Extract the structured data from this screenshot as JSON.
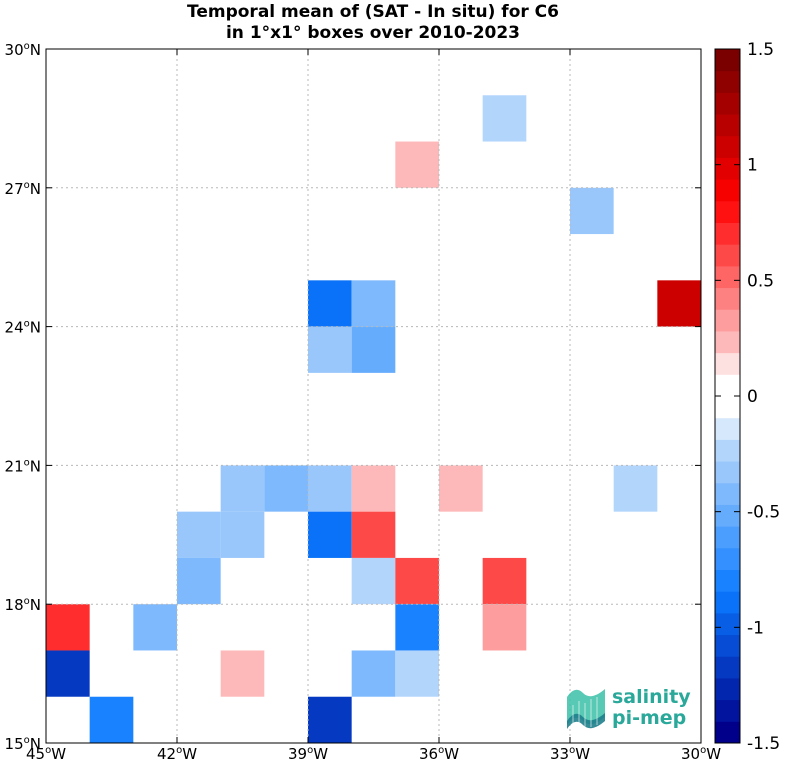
{
  "chart_data": {
    "type": "heatmap",
    "title": [
      "Temporal mean of (SAT - In situ) for C6",
      "in 1°x1° boxes over 2010-2023"
    ],
    "xlabel": "",
    "ylabel": "",
    "xlim": [
      -45,
      -30
    ],
    "ylim": [
      15,
      30
    ],
    "grid": true,
    "x_ticks": [
      {
        "value": -45,
        "deg": "45",
        "hemi": "W"
      },
      {
        "value": -42,
        "deg": "42",
        "hemi": "W"
      },
      {
        "value": -39,
        "deg": "39",
        "hemi": "W"
      },
      {
        "value": -36,
        "deg": "36",
        "hemi": "W"
      },
      {
        "value": -33,
        "deg": "33",
        "hemi": "W"
      },
      {
        "value": -30,
        "deg": "30",
        "hemi": "W"
      }
    ],
    "y_ticks": [
      {
        "value": 15,
        "deg": "15",
        "hemi": "N"
      },
      {
        "value": 18,
        "deg": "18",
        "hemi": "N"
      },
      {
        "value": 21,
        "deg": "21",
        "hemi": "N"
      },
      {
        "value": 24,
        "deg": "24",
        "hemi": "N"
      },
      {
        "value": 27,
        "deg": "27",
        "hemi": "N"
      },
      {
        "value": 30,
        "deg": "30",
        "hemi": "N"
      }
    ],
    "cells": [
      {
        "lon": -35,
        "lat": 28,
        "value": -0.2
      },
      {
        "lon": -37,
        "lat": 27,
        "value": 0.2
      },
      {
        "lon": -33,
        "lat": 26,
        "value": -0.3
      },
      {
        "lon": -31,
        "lat": 24,
        "value": 1.1
      },
      {
        "lon": -39,
        "lat": 24,
        "value": -0.9
      },
      {
        "lon": -38,
        "lat": 24,
        "value": -0.4
      },
      {
        "lon": -39,
        "lat": 23,
        "value": -0.3
      },
      {
        "lon": -38,
        "lat": 23,
        "value": -0.5
      },
      {
        "lon": -41,
        "lat": 20,
        "value": -0.3
      },
      {
        "lon": -40,
        "lat": 20,
        "value": -0.4
      },
      {
        "lon": -39,
        "lat": 20,
        "value": -0.3
      },
      {
        "lon": -38,
        "lat": 20,
        "value": 0.2
      },
      {
        "lon": -36,
        "lat": 20,
        "value": 0.2
      },
      {
        "lon": -32,
        "lat": 20,
        "value": -0.2
      },
      {
        "lon": -42,
        "lat": 19,
        "value": -0.3
      },
      {
        "lon": -41,
        "lat": 19,
        "value": -0.3
      },
      {
        "lon": -39,
        "lat": 19,
        "value": -0.9
      },
      {
        "lon": -38,
        "lat": 19,
        "value": 0.6
      },
      {
        "lon": -42,
        "lat": 18,
        "value": -0.4
      },
      {
        "lon": -38,
        "lat": 18,
        "value": -0.2
      },
      {
        "lon": -37,
        "lat": 18,
        "value": 0.6
      },
      {
        "lon": -35,
        "lat": 18,
        "value": 0.6
      },
      {
        "lon": -45,
        "lat": 17,
        "value": 0.7
      },
      {
        "lon": -43,
        "lat": 17,
        "value": -0.4
      },
      {
        "lon": -37,
        "lat": 17,
        "value": -0.8
      },
      {
        "lon": -35,
        "lat": 17,
        "value": 0.3
      },
      {
        "lon": -45,
        "lat": 16,
        "value": -1.2
      },
      {
        "lon": -41,
        "lat": 16,
        "value": 0.2
      },
      {
        "lon": -38,
        "lat": 16,
        "value": -0.4
      },
      {
        "lon": -37,
        "lat": 16,
        "value": -0.2
      },
      {
        "lon": -44,
        "lat": 15,
        "value": -0.8
      },
      {
        "lon": -39,
        "lat": 15,
        "value": -1.2
      }
    ],
    "colorbar": {
      "vmin": -1.5,
      "vmax": 1.5,
      "levels": 32,
      "ticks": [
        {
          "value": 1.5,
          "label": "1.5"
        },
        {
          "value": 1.0,
          "label": "1"
        },
        {
          "value": 0.5,
          "label": "0.5"
        },
        {
          "value": 0.0,
          "label": "0"
        },
        {
          "value": -0.5,
          "label": "-0.5"
        },
        {
          "value": -1.0,
          "label": "-1"
        },
        {
          "value": -1.5,
          "label": "-1.5"
        }
      ],
      "colors": {
        "neg_darkest": "#00008b",
        "neg_mid": "#0a7aff",
        "neg_light": "#d6e8fb",
        "zero": "#ffffff",
        "pos_light": "#fde0e0",
        "pos_mid": "#ff0000",
        "pos_darkest": "#7a0000"
      }
    }
  },
  "logo": {
    "line1": "salinity",
    "line2": "pi-mep",
    "color": "#2aa89a"
  }
}
